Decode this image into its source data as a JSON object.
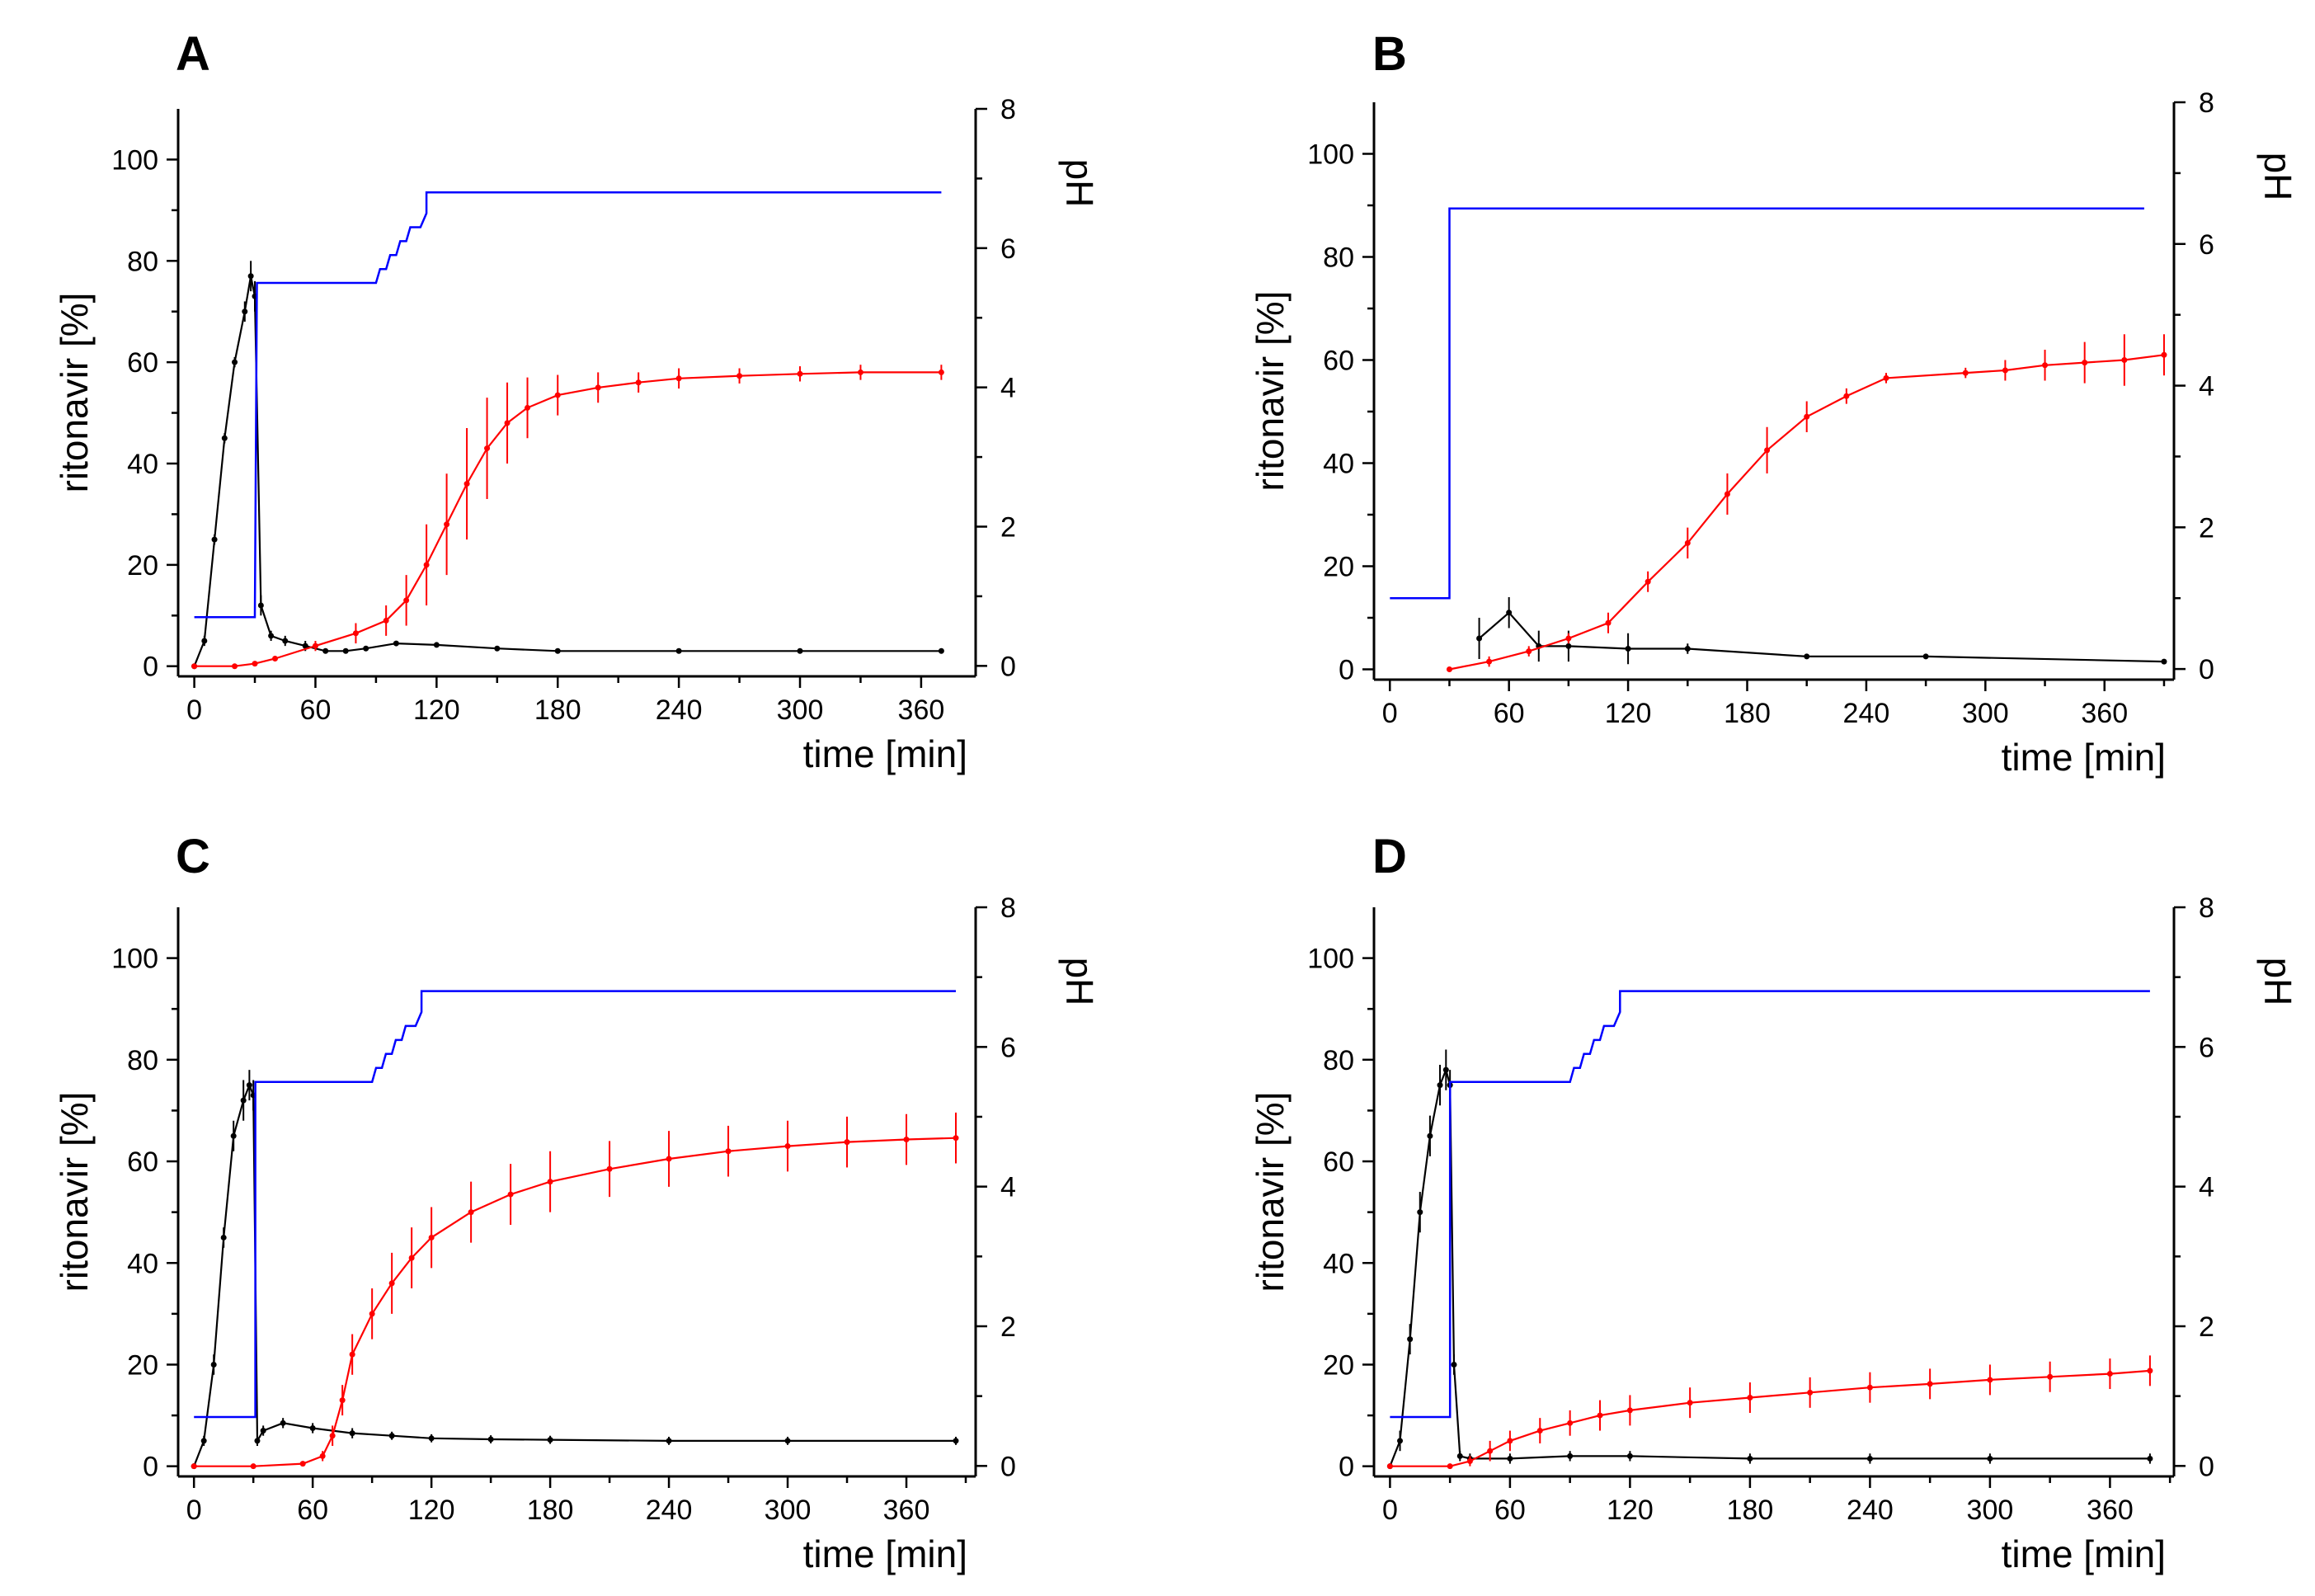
{
  "chart_data": [
    {
      "panel": "A",
      "type": "line",
      "title": "A",
      "xlabel": "time [min]",
      "ylabel": "ritonavir [%]",
      "y2label": "pH",
      "xlim": [
        -8,
        387
      ],
      "ylim": [
        -2,
        110
      ],
      "y2lim": [
        -0.15,
        8
      ],
      "xticks": [
        0,
        60,
        120,
        180,
        240,
        300,
        360
      ],
      "yticks": [
        0,
        20,
        40,
        60,
        80,
        100
      ],
      "y2ticks": [
        0,
        2,
        4,
        6,
        8
      ],
      "series": [
        {
          "name": "ritonavir (black)",
          "color": "#000000",
          "axis": "left",
          "x": [
            0,
            5,
            10,
            15,
            20,
            25,
            28,
            30,
            33,
            38,
            45,
            55,
            65,
            75,
            85,
            100,
            120,
            150,
            180,
            240,
            300,
            370
          ],
          "y": [
            0,
            5,
            25,
            45,
            60,
            70,
            77,
            73,
            12,
            6,
            5,
            4,
            3,
            3,
            3.5,
            4.5,
            4.2,
            3.5,
            3,
            3,
            3,
            3
          ],
          "err": [
            0,
            1,
            1,
            1,
            1,
            2,
            3,
            3,
            2,
            1,
            1,
            1,
            0.5,
            0.5,
            0.5,
            0.5,
            0.5,
            0.5,
            0.5,
            0.5,
            0.5,
            0.5
          ]
        },
        {
          "name": "ritonavir (red)",
          "color": "#ff0000",
          "axis": "left",
          "x": [
            0,
            20,
            30,
            40,
            60,
            80,
            95,
            105,
            115,
            125,
            135,
            145,
            155,
            165,
            180,
            200,
            220,
            240,
            270,
            300,
            330,
            370
          ],
          "y": [
            0,
            0,
            0.5,
            1.5,
            4,
            6.5,
            9,
            13,
            20,
            28,
            36,
            43,
            48,
            51,
            53.5,
            55,
            56,
            56.8,
            57.3,
            57.7,
            58,
            58
          ],
          "err": [
            0,
            0,
            0.2,
            0.5,
            1,
            2,
            3,
            5,
            8,
            10,
            11,
            10,
            8,
            6,
            4,
            3,
            2,
            2,
            1.5,
            1.5,
            1.5,
            1.5
          ]
        },
        {
          "name": "pH (blue)",
          "color": "#0000ff",
          "axis": "right",
          "step": true,
          "x": [
            0,
            30,
            31,
            33,
            90,
            92,
            95,
            97,
            100,
            102,
            105,
            107,
            112,
            115,
            115,
            370
          ],
          "y": [
            0.7,
            0.7,
            5.5,
            5.5,
            5.5,
            5.7,
            5.7,
            5.9,
            5.9,
            6.1,
            6.1,
            6.3,
            6.3,
            6.5,
            6.8,
            6.8
          ]
        }
      ]
    },
    {
      "panel": "B",
      "type": "line",
      "title": "B",
      "xlabel": "time [min]",
      "ylabel": "ritonavir [%]",
      "y2label": "pH",
      "xlim": [
        -8,
        395
      ],
      "ylim": [
        -2,
        110
      ],
      "y2lim": [
        -0.15,
        8
      ],
      "xticks": [
        0,
        60,
        120,
        180,
        240,
        300,
        360
      ],
      "yticks": [
        0,
        20,
        40,
        60,
        80,
        100
      ],
      "y2ticks": [
        0,
        2,
        4,
        6,
        8
      ],
      "series": [
        {
          "name": "ritonavir (black)",
          "color": "#000000",
          "axis": "left",
          "x": [
            45,
            60,
            75,
            90,
            120,
            150,
            210,
            270,
            390
          ],
          "y": [
            6,
            11,
            4.5,
            4.5,
            4,
            4,
            2.5,
            2.5,
            1.5
          ],
          "err": [
            4,
            3,
            3,
            3,
            3,
            1,
            0.5,
            0.5,
            0.5
          ]
        },
        {
          "name": "ritonavir (red)",
          "color": "#ff0000",
          "axis": "left",
          "x": [
            30,
            50,
            70,
            90,
            110,
            130,
            150,
            170,
            190,
            210,
            230,
            250,
            290,
            310,
            330,
            350,
            370,
            390
          ],
          "y": [
            0,
            1.5,
            3.5,
            6,
            9,
            17,
            24.5,
            34,
            42.5,
            49,
            53,
            56.5,
            57.5,
            58,
            59,
            59.5,
            60,
            61
          ],
          "err": [
            0,
            1,
            1,
            1,
            2,
            2,
            3,
            4,
            4.5,
            3,
            1.5,
            1,
            1,
            2,
            3,
            4,
            5,
            4
          ]
        },
        {
          "name": "pH (blue)",
          "color": "#0000ff",
          "axis": "right",
          "step": true,
          "x": [
            0,
            30,
            30,
            380
          ],
          "y": [
            1,
            1,
            6.5,
            6.5
          ]
        }
      ]
    },
    {
      "panel": "C",
      "type": "line",
      "title": "C",
      "xlabel": "time [min]",
      "ylabel": "ritonavir [%]",
      "y2label": "pH",
      "xlim": [
        -8,
        395
      ],
      "ylim": [
        -2,
        110
      ],
      "y2lim": [
        -0.15,
        8
      ],
      "xticks": [
        0,
        60,
        120,
        180,
        240,
        300,
        360
      ],
      "yticks": [
        0,
        20,
        40,
        60,
        80,
        100
      ],
      "y2ticks": [
        0,
        2,
        4,
        6,
        8
      ],
      "series": [
        {
          "name": "ritonavir (black)",
          "color": "#000000",
          "axis": "left",
          "x": [
            0,
            5,
            10,
            15,
            20,
            25,
            28,
            30,
            32,
            35,
            45,
            60,
            80,
            100,
            120,
            150,
            180,
            240,
            300,
            385
          ],
          "y": [
            0,
            5,
            20,
            45,
            65,
            72,
            75,
            73,
            5,
            7,
            8.5,
            7.5,
            6.5,
            6,
            5.5,
            5.3,
            5.2,
            5,
            5,
            5
          ],
          "err": [
            0,
            1,
            2,
            2,
            3,
            4,
            3,
            3,
            1,
            1,
            1,
            1,
            1,
            0.8,
            0.8,
            0.8,
            0.8,
            0.8,
            0.8,
            0.8
          ]
        },
        {
          "name": "ritonavir (red)",
          "color": "#ff0000",
          "axis": "left",
          "x": [
            0,
            30,
            55,
            65,
            70,
            75,
            80,
            90,
            100,
            110,
            120,
            140,
            160,
            180,
            210,
            240,
            270,
            300,
            330,
            360,
            385
          ],
          "y": [
            0,
            0,
            0.5,
            2,
            6,
            13,
            22,
            30,
            36,
            41,
            45,
            50,
            53.5,
            56,
            58.5,
            60.5,
            62,
            63,
            63.8,
            64.3,
            64.6
          ],
          "err": [
            0,
            0,
            0.3,
            1,
            2,
            3,
            4,
            5,
            6,
            6,
            6,
            6,
            6,
            6,
            5.5,
            5.5,
            5,
            5,
            5,
            5,
            5
          ]
        },
        {
          "name": "pH (blue)",
          "color": "#0000ff",
          "axis": "right",
          "step": true,
          "x": [
            0,
            31,
            31,
            33,
            90,
            92,
            95,
            97,
            100,
            102,
            105,
            107,
            112,
            115,
            115,
            385
          ],
          "y": [
            0.7,
            0.7,
            5.5,
            5.5,
            5.5,
            5.7,
            5.7,
            5.9,
            5.9,
            6.1,
            6.1,
            6.3,
            6.3,
            6.5,
            6.8,
            6.8
          ]
        }
      ]
    },
    {
      "panel": "D",
      "type": "line",
      "title": "D",
      "xlabel": "time [min]",
      "ylabel": "ritonavir [%]",
      "y2label": "pH",
      "xlim": [
        -8,
        392
      ],
      "ylim": [
        -2,
        110
      ],
      "y2lim": [
        -0.15,
        8
      ],
      "xticks": [
        0,
        60,
        120,
        180,
        240,
        300,
        360
      ],
      "yticks": [
        0,
        20,
        40,
        60,
        80,
        100
      ],
      "y2ticks": [
        0,
        2,
        4,
        6,
        8
      ],
      "series": [
        {
          "name": "ritonavir (black)",
          "color": "#000000",
          "axis": "left",
          "x": [
            0,
            5,
            10,
            15,
            20,
            25,
            28,
            30,
            32,
            35,
            40,
            60,
            90,
            120,
            180,
            240,
            300,
            380
          ],
          "y": [
            0,
            5,
            25,
            50,
            65,
            75,
            78,
            75,
            20,
            2,
            1.5,
            1.5,
            2,
            2,
            1.5,
            1.5,
            1.5,
            1.5
          ],
          "err": [
            0,
            2,
            3,
            4,
            4,
            4,
            4,
            3,
            2,
            1,
            1,
            1,
            1,
            1,
            1,
            1,
            1,
            1
          ]
        },
        {
          "name": "ritonavir (red)",
          "color": "#ff0000",
          "axis": "left",
          "x": [
            0,
            30,
            40,
            50,
            60,
            75,
            90,
            105,
            120,
            150,
            180,
            210,
            240,
            270,
            300,
            330,
            360,
            380
          ],
          "y": [
            0,
            0,
            1,
            3,
            5,
            7,
            8.5,
            10,
            11,
            12.5,
            13.5,
            14.5,
            15.5,
            16.2,
            17,
            17.6,
            18.2,
            18.8
          ],
          "err": [
            0,
            0,
            1,
            2,
            2,
            2.5,
            2.5,
            3,
            3,
            3,
            3,
            3,
            3,
            3,
            3,
            3,
            3,
            3
          ]
        },
        {
          "name": "pH (blue)",
          "color": "#0000ff",
          "axis": "right",
          "step": true,
          "x": [
            0,
            30,
            30,
            32,
            90,
            92,
            95,
            97,
            100,
            102,
            105,
            107,
            112,
            115,
            115,
            380
          ],
          "y": [
            0.7,
            0.7,
            5.5,
            5.5,
            5.5,
            5.7,
            5.7,
            5.9,
            5.9,
            6.1,
            6.1,
            6.3,
            6.3,
            6.5,
            6.8,
            6.8
          ]
        }
      ]
    }
  ]
}
